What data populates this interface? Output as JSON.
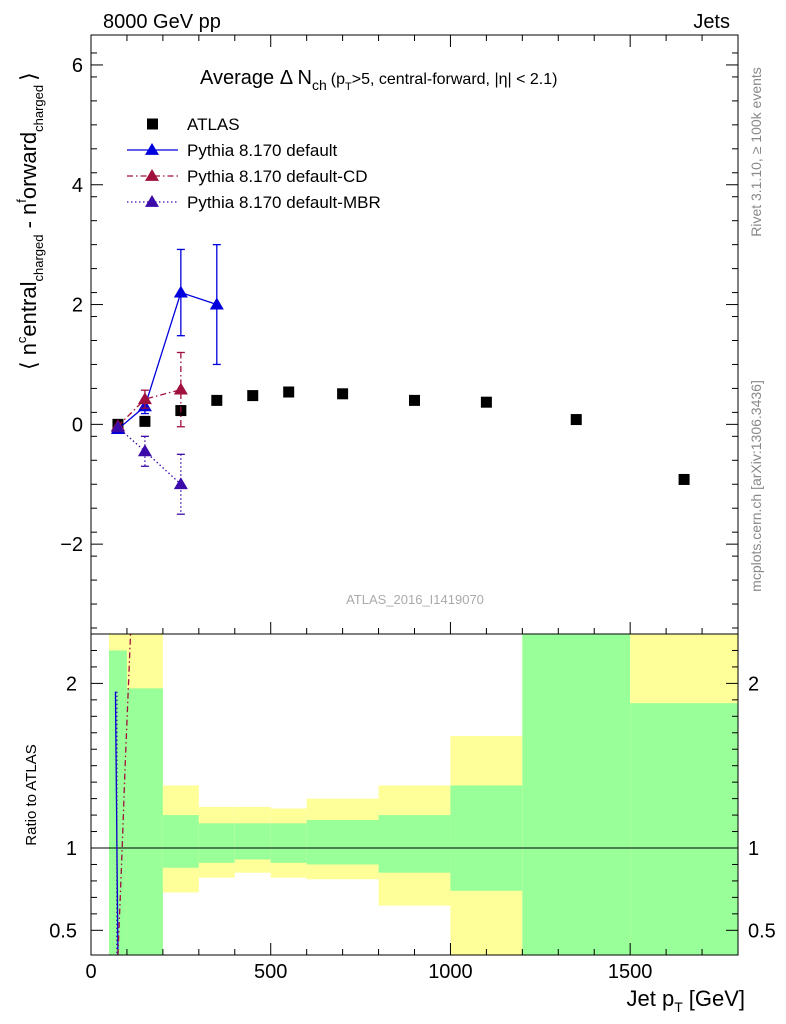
{
  "header": {
    "left": "8000 GeV pp",
    "right": "Jets"
  },
  "side_text": {
    "rivet": "Rivet 3.1.10, ≥ 100k events",
    "mcplots": "mcplots.cern.ch [arXiv:1306.3436]"
  },
  "analysis_id": "ATLAS_2016_I1419070",
  "colors": {
    "atlas": "#000000",
    "default": "#0000dd",
    "default_cd": "#a0103c",
    "default_mbr": "#3b0aa8",
    "band_green": "#99ff99",
    "band_yellow": "#ffff99"
  },
  "chart_data": [
    {
      "type": "scatter",
      "title": "Average Δ N",
      "title_sub": "ch",
      "title_tail_small": "(p",
      "title_tail_sub": "T",
      "title_tail_rest": ">5, central-forward, |η| < 2.1)",
      "ylabel": "⟨ n^central_charged - n^forward_charged ⟩",
      "ylabel_parts": {
        "open": "⟨ n",
        "sup1": "c",
        "mid1": "entral",
        "sub1": "charged",
        "mid2": " - n",
        "sup2": "f",
        "mid3": "orward",
        "sub2": "charged",
        "close": "⟩"
      },
      "xlim": [
        0,
        1800
      ],
      "ylim": [
        -3.5,
        6.5
      ],
      "yticks": [
        -2,
        0,
        2,
        4,
        6
      ],
      "ytick_labels": [
        "−2",
        "0",
        "2",
        "4",
        "6"
      ],
      "legend_position": "top-left",
      "series": [
        {
          "name": "ATLAS",
          "marker": "square",
          "x": [
            75,
            150,
            250,
            350,
            450,
            550,
            700,
            900,
            1100,
            1350,
            1650
          ],
          "y": [
            0.0,
            0.05,
            0.23,
            0.4,
            0.48,
            0.54,
            0.51,
            0.4,
            0.37,
            0.08,
            -0.92
          ]
        },
        {
          "name": "Pythia 8.170 default",
          "marker": "triangle",
          "line": "solid",
          "x": [
            75,
            150,
            250,
            350
          ],
          "y": [
            -0.08,
            0.3,
            2.2,
            2.0
          ],
          "yerr": [
            0.05,
            0.12,
            0.72,
            1.0
          ]
        },
        {
          "name": "Pythia 8.170 default-CD",
          "marker": "triangle",
          "line": "dashdot",
          "x": [
            75,
            150,
            250
          ],
          "y": [
            -0.03,
            0.42,
            0.58
          ],
          "yerr": [
            0.05,
            0.15,
            0.62
          ]
        },
        {
          "name": "Pythia 8.170 default-MBR",
          "marker": "triangle",
          "line": "dotted",
          "x": [
            75,
            150,
            250
          ],
          "y": [
            -0.05,
            -0.45,
            -1.0
          ],
          "yerr": [
            0.05,
            0.25,
            0.5
          ]
        }
      ]
    },
    {
      "type": "area",
      "xlabel": "Jet p",
      "xlabel_sub": "T",
      "xlabel_unit": "[GeV]",
      "ylabel": "Ratio to ATLAS",
      "xlim": [
        0,
        1800
      ],
      "ylim": [
        0.35,
        2.3
      ],
      "xticks": [
        0,
        500,
        1000,
        1500
      ],
      "xtick_labels": [
        "0",
        "500",
        "1000",
        "1500"
      ],
      "yticks": [
        0.5,
        1,
        2
      ],
      "ytick_labels": [
        "0.5",
        "1",
        "2"
      ],
      "bins": [
        {
          "x0": 50,
          "x1": 100,
          "g_lo": 0.35,
          "g_hi": 2.2,
          "y_lo": 0.35,
          "y_hi": 2.3
        },
        {
          "x0": 100,
          "x1": 200,
          "g_lo": 0.35,
          "g_hi": 1.97,
          "y_lo": 0.35,
          "y_hi": 2.3
        },
        {
          "x0": 200,
          "x1": 300,
          "g_lo": 0.88,
          "g_hi": 1.2,
          "y_lo": 0.73,
          "y_hi": 1.38
        },
        {
          "x0": 300,
          "x1": 400,
          "g_lo": 0.91,
          "g_hi": 1.15,
          "y_lo": 0.82,
          "y_hi": 1.25
        },
        {
          "x0": 400,
          "x1": 500,
          "g_lo": 0.93,
          "g_hi": 1.15,
          "y_lo": 0.85,
          "y_hi": 1.25
        },
        {
          "x0": 500,
          "x1": 600,
          "g_lo": 0.91,
          "g_hi": 1.15,
          "y_lo": 0.82,
          "y_hi": 1.24
        },
        {
          "x0": 600,
          "x1": 800,
          "g_lo": 0.9,
          "g_hi": 1.17,
          "y_lo": 0.81,
          "y_hi": 1.3
        },
        {
          "x0": 800,
          "x1": 1000,
          "g_lo": 0.85,
          "g_hi": 1.2,
          "y_lo": 0.65,
          "y_hi": 1.38
        },
        {
          "x0": 1000,
          "x1": 1200,
          "g_lo": 0.74,
          "g_hi": 1.38,
          "y_lo": 0.35,
          "y_hi": 1.68
        },
        {
          "x0": 1200,
          "x1": 1500,
          "g_lo": 0.35,
          "g_hi": 2.3,
          "y_lo": 0.35,
          "y_hi": 2.3
        },
        {
          "x0": 1500,
          "x1": 1800,
          "g_lo": 0.35,
          "g_hi": 1.88,
          "y_lo": 0.35,
          "y_hi": 2.3
        }
      ],
      "ratio_lines": [
        {
          "series": "Pythia 8.170 default",
          "points": [
            [
              68,
              1.95
            ],
            [
              75,
              0.35
            ]
          ]
        },
        {
          "series": "Pythia 8.170 default-CD",
          "points": [
            [
              75,
              0.35
            ],
            [
              85,
              0.9
            ],
            [
              95,
              1.5
            ],
            [
              110,
              2.3
            ]
          ]
        },
        {
          "series": "Pythia 8.170 default-MBR",
          "points": [
            [
              72,
              1.95
            ],
            [
              72,
              0.35
            ]
          ]
        }
      ]
    }
  ]
}
